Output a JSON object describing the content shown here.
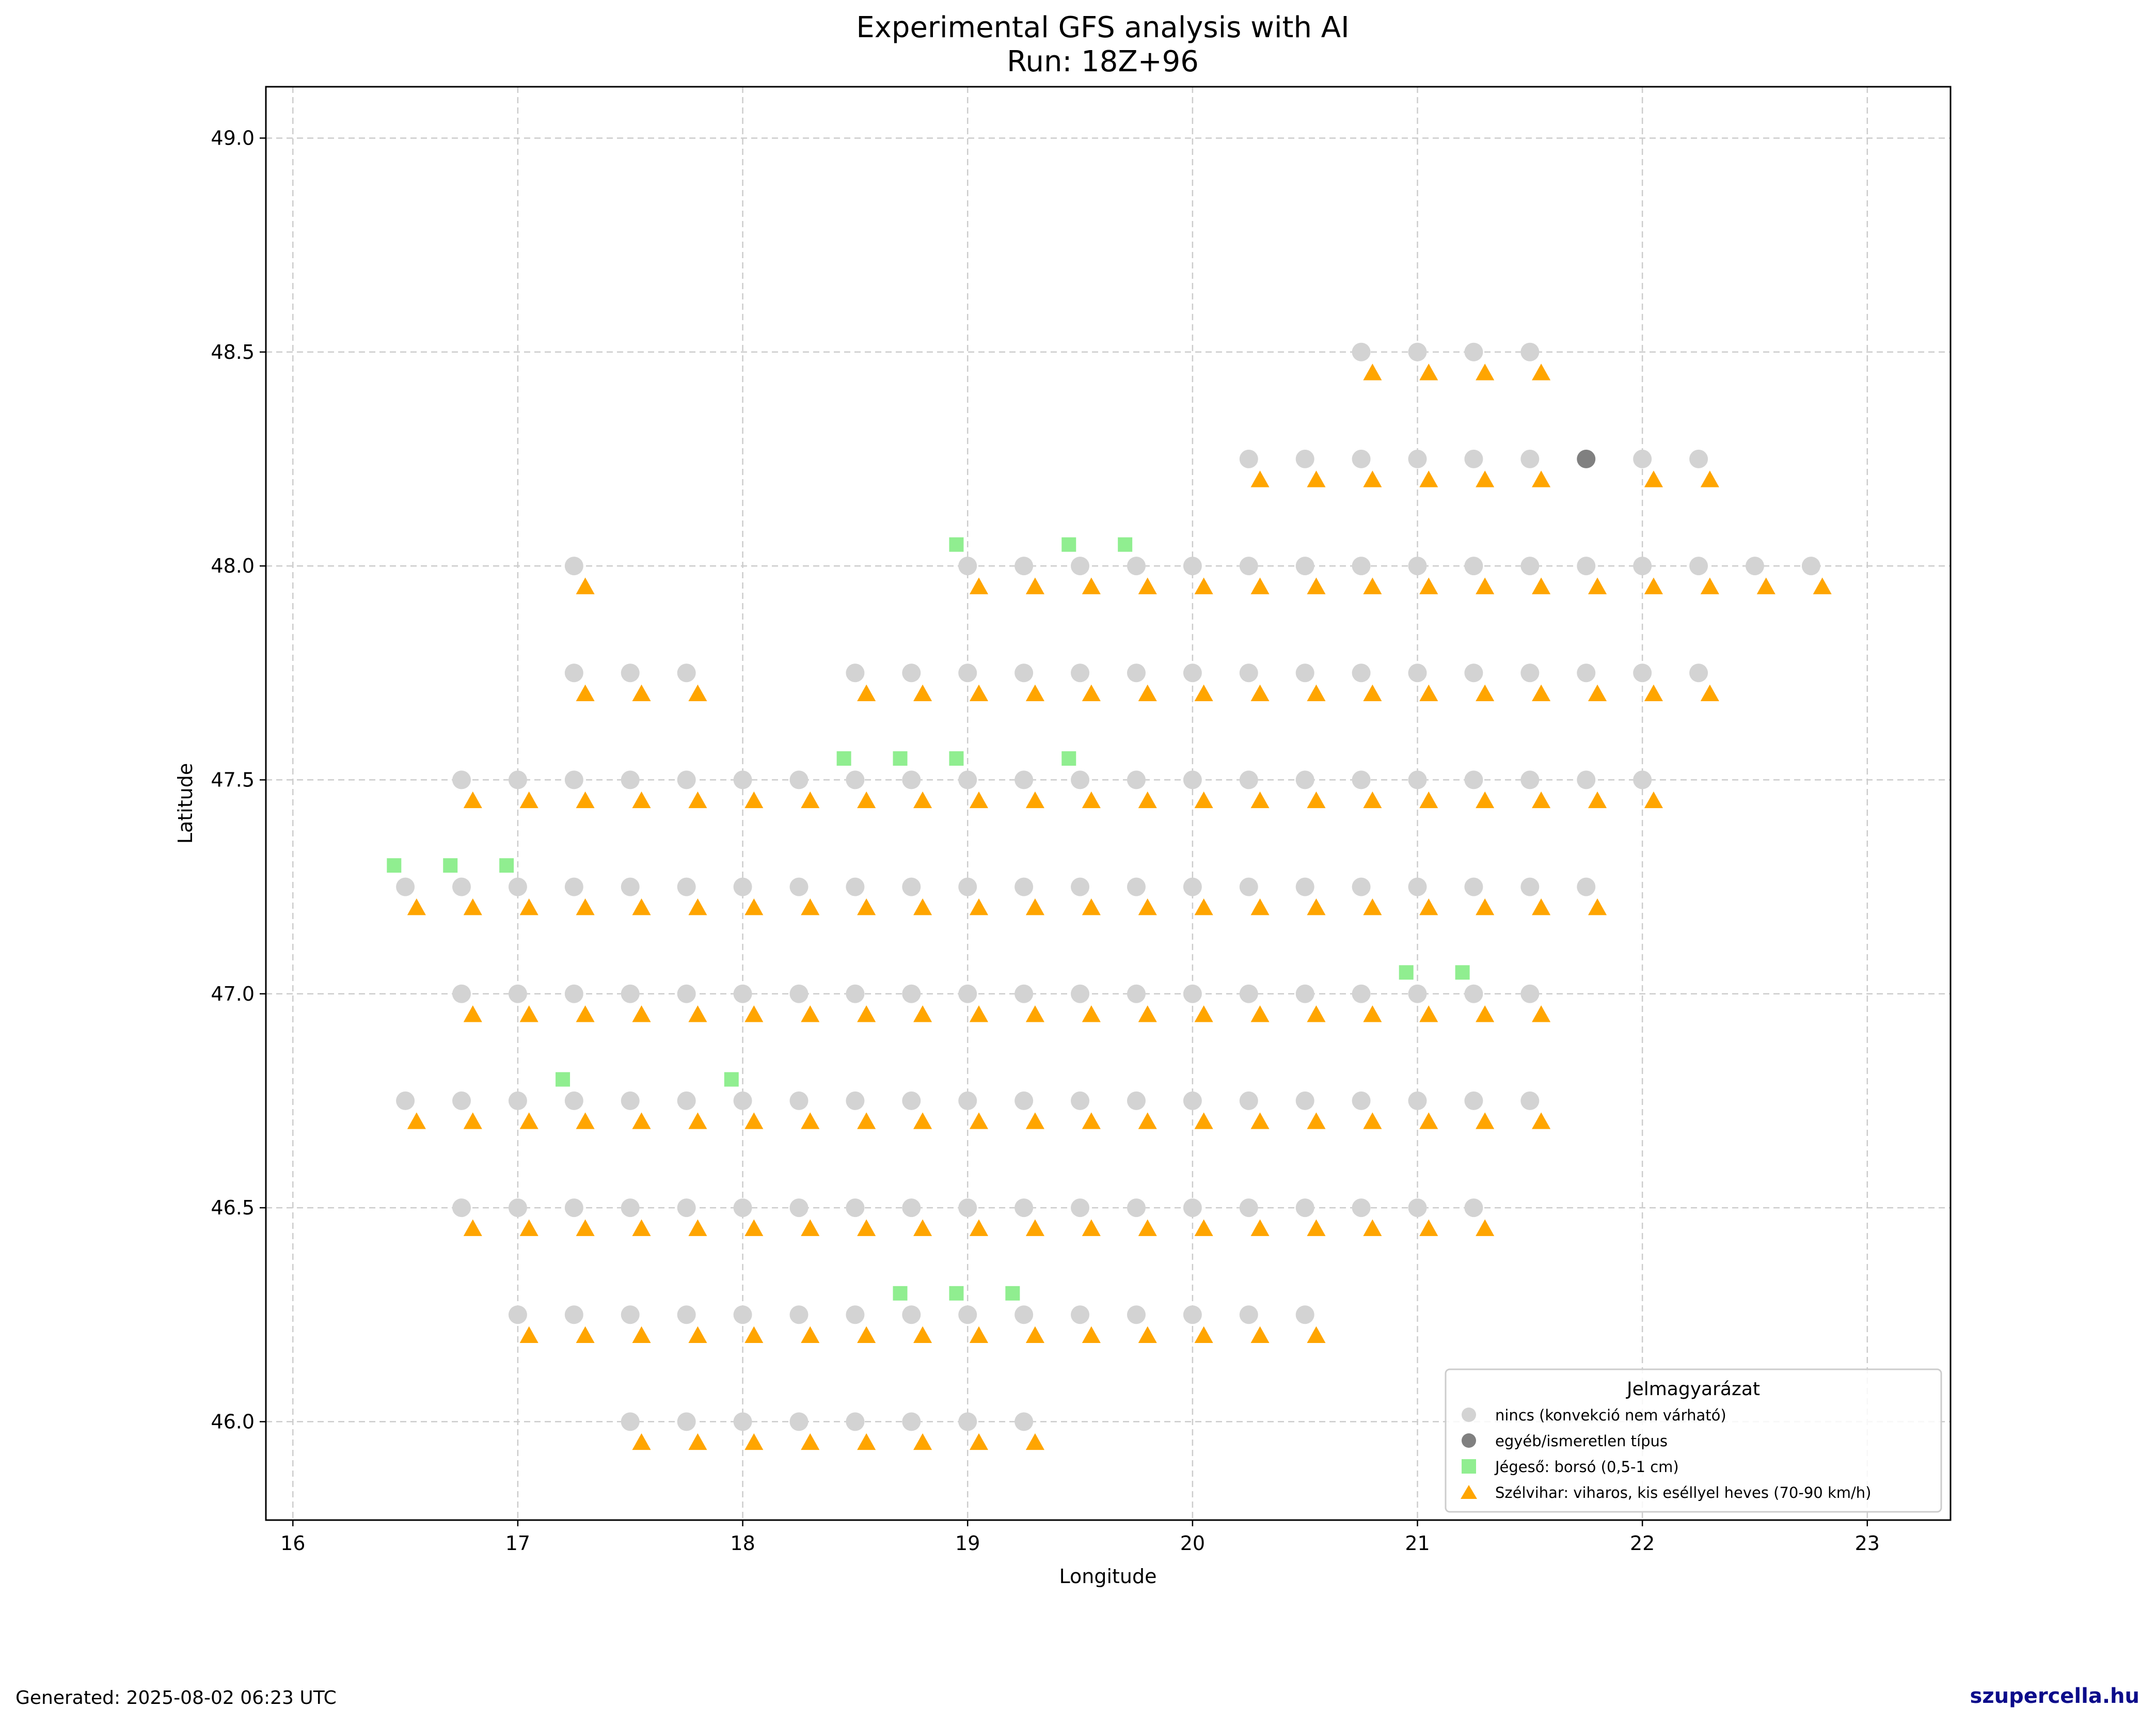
{
  "chart_data": {
    "type": "scatter",
    "title": "Experimental GFS analysis with AI",
    "subtitle": "Run: 18Z+96",
    "xlabel": "Longitude",
    "ylabel": "Latitude",
    "xlim": [
      15.88,
      23.37
    ],
    "ylim": [
      45.77,
      49.12
    ],
    "xticks": [
      16,
      17,
      18,
      19,
      20,
      21,
      22,
      23
    ],
    "yticks": [
      46.0,
      46.5,
      47.0,
      47.5,
      48.0,
      48.5,
      49.0
    ],
    "grid": true,
    "legend": {
      "title": "Jelmagyarázat",
      "placement": "lower-right",
      "entries": [
        {
          "label": "nincs (konvekció nem várható)",
          "marker": "circle",
          "color": "#d3d3d3"
        },
        {
          "label": "egyéb/ismeretlen típus",
          "marker": "circle",
          "color": "#808080"
        },
        {
          "label": "Jégeső: borsó (0,5-1 cm)",
          "marker": "square",
          "color": "#90ee90"
        },
        {
          "label": "Szélvihar: viharos, kis eséllyel heves (70-90 km/h)",
          "marker": "triangle",
          "color": "#ffa500"
        }
      ]
    },
    "grid_rows": [
      {
        "lat": 48.5,
        "lons": [
          20.75,
          21.0,
          21.25,
          21.5
        ]
      },
      {
        "lat": 48.25,
        "lons": [
          20.25,
          20.5,
          20.75,
          21.0,
          21.25,
          21.5,
          21.75,
          22.0,
          22.25
        ]
      },
      {
        "lat": 48.0,
        "lons": [
          17.25,
          19.0,
          19.25,
          19.5,
          19.75,
          20.0,
          20.25,
          20.5,
          20.75,
          21.0,
          21.25,
          21.5,
          21.75,
          22.0,
          22.25,
          22.5,
          22.75
        ]
      },
      {
        "lat": 47.75,
        "lons": [
          17.25,
          17.5,
          17.75,
          18.5,
          18.75,
          19.0,
          19.25,
          19.5,
          19.75,
          20.0,
          20.25,
          20.5,
          20.75,
          21.0,
          21.25,
          21.5,
          21.75,
          22.0,
          22.25
        ]
      },
      {
        "lat": 47.5,
        "lons": [
          16.75,
          17.0,
          17.25,
          17.5,
          17.75,
          18.0,
          18.25,
          18.5,
          18.75,
          19.0,
          19.25,
          19.5,
          19.75,
          20.0,
          20.25,
          20.5,
          20.75,
          21.0,
          21.25,
          21.5,
          21.75,
          22.0
        ]
      },
      {
        "lat": 47.25,
        "lons": [
          16.5,
          16.75,
          17.0,
          17.25,
          17.5,
          17.75,
          18.0,
          18.25,
          18.5,
          18.75,
          19.0,
          19.25,
          19.5,
          19.75,
          20.0,
          20.25,
          20.5,
          20.75,
          21.0,
          21.25,
          21.5,
          21.75
        ]
      },
      {
        "lat": 47.0,
        "lons": [
          16.75,
          17.0,
          17.25,
          17.5,
          17.75,
          18.0,
          18.25,
          18.5,
          18.75,
          19.0,
          19.25,
          19.5,
          19.75,
          20.0,
          20.25,
          20.5,
          20.75,
          21.0,
          21.25,
          21.5
        ]
      },
      {
        "lat": 46.75,
        "lons": [
          16.5,
          16.75,
          17.0,
          17.25,
          17.5,
          17.75,
          18.0,
          18.25,
          18.5,
          18.75,
          19.0,
          19.25,
          19.5,
          19.75,
          20.0,
          20.25,
          20.5,
          20.75,
          21.0,
          21.25,
          21.5
        ]
      },
      {
        "lat": 46.5,
        "lons": [
          16.75,
          17.0,
          17.25,
          17.5,
          17.75,
          18.0,
          18.25,
          18.5,
          18.75,
          19.0,
          19.25,
          19.5,
          19.75,
          20.0,
          20.25,
          20.5,
          20.75,
          21.0,
          21.25
        ]
      },
      {
        "lat": 46.25,
        "lons": [
          17.0,
          17.25,
          17.5,
          17.75,
          18.0,
          18.25,
          18.5,
          18.75,
          19.0,
          19.25,
          19.5,
          19.75,
          20.0,
          20.25,
          20.5
        ]
      },
      {
        "lat": 46.0,
        "lons": [
          17.5,
          17.75,
          18.0,
          18.25,
          18.5,
          18.75,
          19.0,
          19.25
        ]
      }
    ],
    "unknown_points": [
      [
        21.75,
        48.25
      ]
    ],
    "wind_exclude": [
      [
        21.75,
        48.25
      ]
    ],
    "hail_points": [
      [
        18.95,
        48.05
      ],
      [
        19.45,
        48.05
      ],
      [
        19.7,
        48.05
      ],
      [
        18.45,
        47.55
      ],
      [
        18.7,
        47.55
      ],
      [
        18.95,
        47.55
      ],
      [
        19.45,
        47.55
      ],
      [
        16.45,
        47.3
      ],
      [
        16.7,
        47.3
      ],
      [
        16.95,
        47.3
      ],
      [
        20.95,
        47.05
      ],
      [
        21.2,
        47.05
      ],
      [
        17.2,
        46.8
      ],
      [
        17.95,
        46.8
      ],
      [
        18.7,
        46.3
      ],
      [
        18.95,
        46.3
      ],
      [
        19.2,
        46.3
      ]
    ],
    "colors": {
      "none": "#d3d3d3",
      "unknown": "#808080",
      "hail": "#90ee90",
      "wind": "#ffa500",
      "grid": "#cccccc",
      "brand": "#0b0b8a"
    }
  },
  "footer": {
    "generated": "Generated: 2025-08-02 06:23 UTC",
    "brand": "szupercella.hu"
  }
}
